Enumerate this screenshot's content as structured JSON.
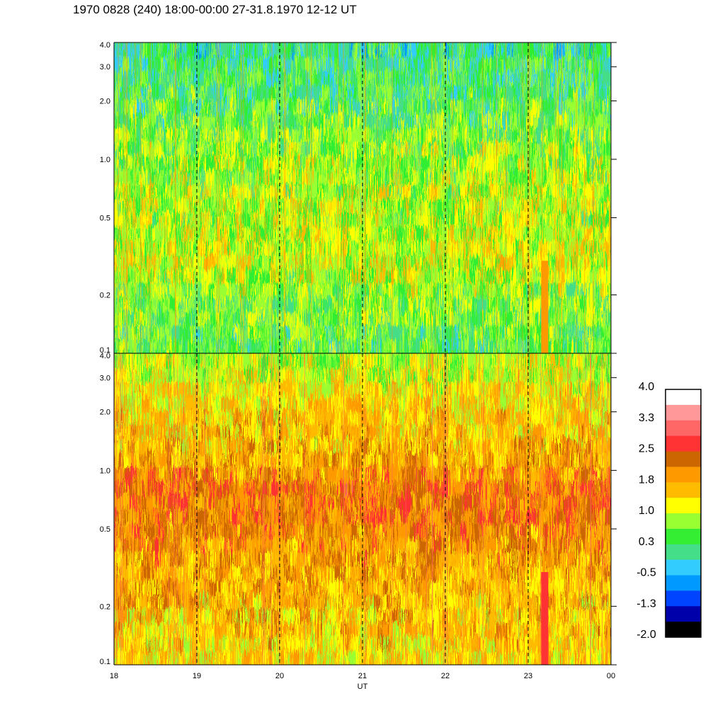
{
  "title": "1970 0828 (240) 18:00-00:00 27-31.8.1970  12-12 UT",
  "chart_data": [
    {
      "type": "heatmap",
      "panel": "top",
      "x_ticks": [
        "18",
        "19",
        "20",
        "21",
        "22",
        "23",
        "00"
      ],
      "x_range": [
        18,
        24
      ],
      "y_scale": "log",
      "y_range": [
        0.1,
        4.0
      ],
      "y_ticks": [
        {
          "value": 0.1,
          "label": "0.1"
        },
        {
          "value": 0.2,
          "label": "0.2"
        },
        {
          "value": 0.5,
          "label": "0.5"
        },
        {
          "value": 1.0,
          "label": "1.0"
        },
        {
          "value": 2.0,
          "label": "2.0"
        },
        {
          "value": 3.0,
          "label": "3.0"
        },
        {
          "value": 4.0,
          "label": "4.0"
        }
      ],
      "hour_markers": [
        19,
        20,
        21,
        22,
        23
      ],
      "level_profile": [
        {
          "y": 0.1,
          "level": 0.4
        },
        {
          "y": 0.2,
          "level": 0.7
        },
        {
          "y": 0.3,
          "level": 1.1
        },
        {
          "y": 0.5,
          "level": 0.9
        },
        {
          "y": 1.0,
          "level": 0.8
        },
        {
          "y": 2.0,
          "level": 0.4
        },
        {
          "y": 4.0,
          "level": 0.1
        }
      ],
      "features": [
        {
          "x": 23.2,
          "y_from": 0.1,
          "y_to": 0.3,
          "level": 2.0,
          "note": "vertical band"
        }
      ]
    },
    {
      "type": "heatmap",
      "panel": "bottom",
      "x_ticks": [
        "18",
        "19",
        "20",
        "21",
        "22",
        "23",
        "00"
      ],
      "x_range": [
        18,
        24
      ],
      "xlabel": "UT",
      "y_scale": "log",
      "y_range": [
        0.1,
        4.0
      ],
      "y_ticks": [
        {
          "value": 0.1,
          "label": "0.1"
        },
        {
          "value": 0.2,
          "label": "0.2"
        },
        {
          "value": 0.5,
          "label": "0.5"
        },
        {
          "value": 1.0,
          "label": "1.0"
        },
        {
          "value": 2.0,
          "label": "2.0"
        },
        {
          "value": 3.0,
          "label": "3.0"
        },
        {
          "value": 4.0,
          "label": "4.0"
        }
      ],
      "hour_markers": [
        19,
        20,
        21,
        22,
        23
      ],
      "level_profile": [
        {
          "y": 0.1,
          "level": 1.4
        },
        {
          "y": 0.2,
          "level": 1.6
        },
        {
          "y": 0.5,
          "level": 2.0
        },
        {
          "y": 0.8,
          "level": 2.2
        },
        {
          "y": 1.2,
          "level": 1.7
        },
        {
          "y": 2.0,
          "level": 1.5
        },
        {
          "y": 4.0,
          "level": 0.9
        }
      ],
      "features": [
        {
          "x": 23.2,
          "y_from": 0.1,
          "y_to": 0.3,
          "level": 2.6,
          "note": "vertical band"
        }
      ]
    }
  ],
  "colorbar": {
    "labels": [
      "4.0",
      "3.3",
      "2.5",
      "1.8",
      "1.0",
      "0.3",
      "-0.5",
      "-1.3",
      "-2.0"
    ],
    "colors": [
      "#ffffff",
      "#ff9999",
      "#ff6666",
      "#ff3333",
      "#cc6600",
      "#ff9900",
      "#ffbb00",
      "#ffff00",
      "#99ff33",
      "#33ee33",
      "#44dd88",
      "#33ccff",
      "#0099ff",
      "#0044ff",
      "#0000aa",
      "#000000"
    ]
  }
}
